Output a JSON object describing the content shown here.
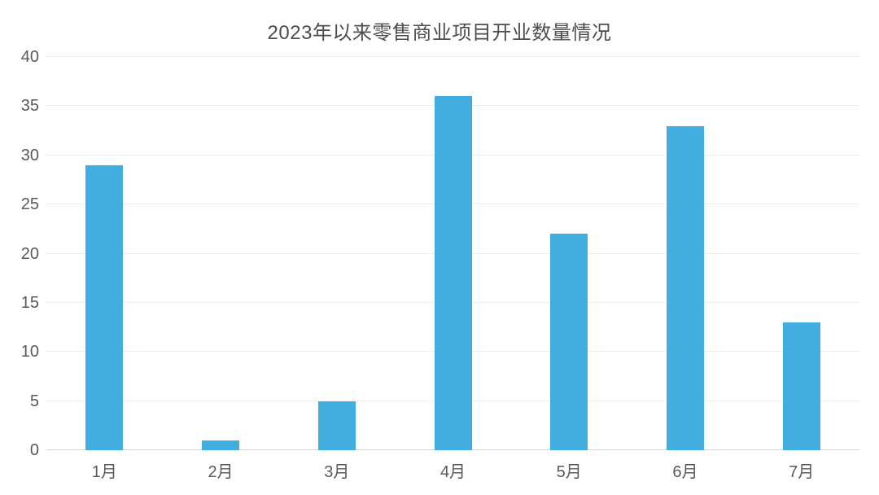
{
  "chart_data": {
    "type": "bar",
    "title": "2023年以来零售商业项目开业数量情况",
    "categories": [
      "1月",
      "2月",
      "3月",
      "4月",
      "5月",
      "6月",
      "7月"
    ],
    "values": [
      29,
      1,
      5,
      36,
      22,
      33,
      13
    ],
    "xlabel": "",
    "ylabel": "",
    "ylim": [
      0,
      40
    ],
    "yticks": [
      0,
      5,
      10,
      15,
      20,
      25,
      30,
      35,
      40
    ],
    "grid": "horizontal",
    "legend": "none",
    "colors": {
      "bar": "#41AEDF",
      "gridline": "#dcdcdc",
      "axis_line": "#d4d4d4",
      "tick_text": "#595959",
      "title_text": "#4d4d4d",
      "background": "#ffffff"
    }
  }
}
